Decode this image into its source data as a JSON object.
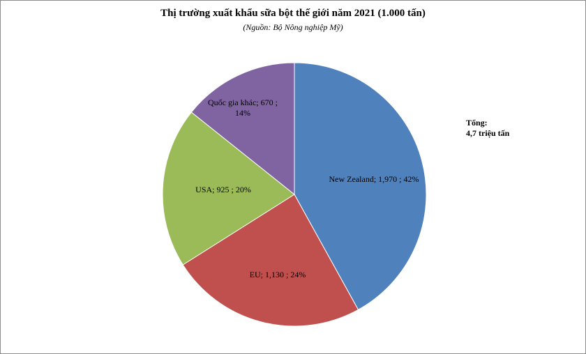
{
  "chart_data": {
    "type": "pie",
    "title": "Thị trường xuất khẩu sữa bột thế giới năm 2021 (1.000 tấn)",
    "subtitle": "(Nguồn: Bộ Nông nghiệp Mỹ)",
    "categories": [
      "New Zealand",
      "EU",
      "USA",
      "Quốc gia khác"
    ],
    "values": [
      1970,
      1130,
      925,
      670
    ],
    "percents": [
      42,
      24,
      20,
      14
    ],
    "data_labels": [
      [
        "New Zealand;  1,970 ; 42%"
      ],
      [
        "EU;  1,130 ; 24%"
      ],
      [
        "USA;  925 ; 20%"
      ],
      [
        "Quốc gia khác;  670 ;",
        "14%"
      ]
    ],
    "colors": [
      "#4F81BD",
      "#C0504D",
      "#9BBB59",
      "#8064A2"
    ],
    "start_angle_deg": 0,
    "direction": "clockwise",
    "legend": "none"
  },
  "annotation": {
    "line1": "Tổng:",
    "line2": "4,7 triệu tấn"
  }
}
